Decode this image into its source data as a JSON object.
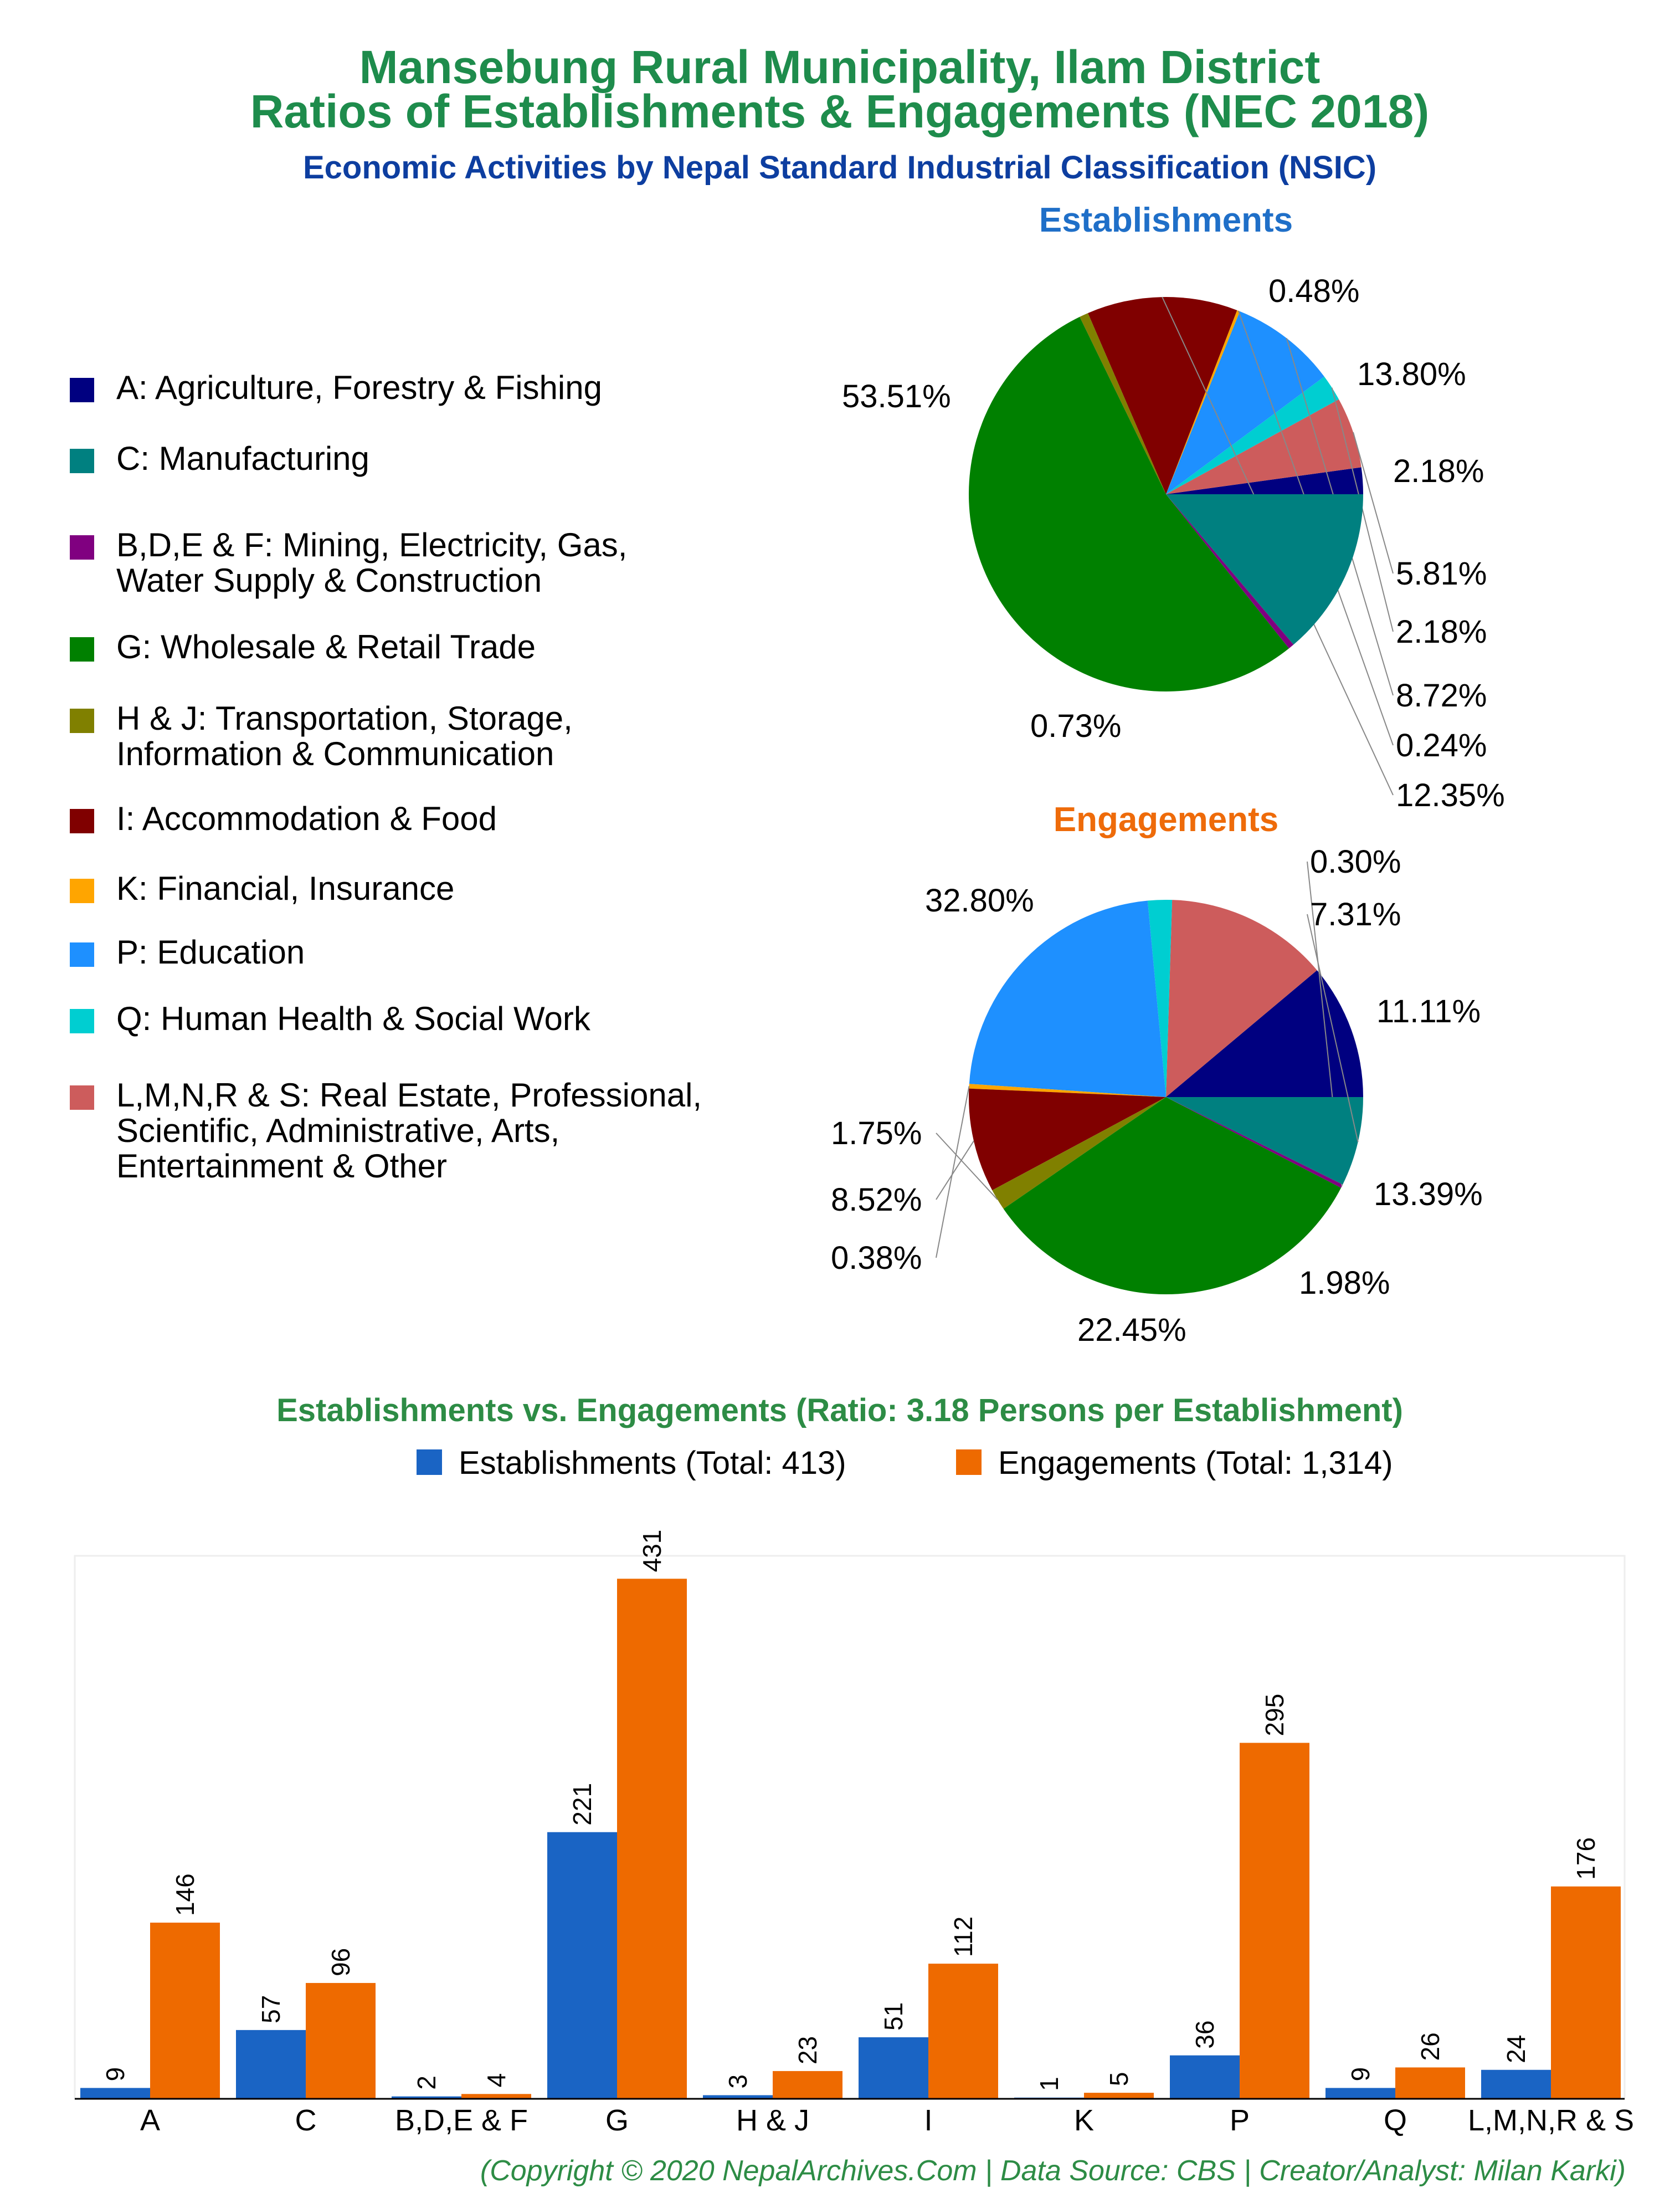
{
  "title_line1": "Mansebung Rural Municipality, Ilam District",
  "title_line2": "Ratios of Establishments & Engagements (NEC 2018)",
  "subtitle": "Economic Activities by Nepal Standard Industrial Classification (NSIC)",
  "copyright": "(Copyright © 2020 NepalArchives.Com | Data Source: CBS | Creator/Analyst: Milan Karki)",
  "colors": {
    "A": "#000080",
    "C": "#008080",
    "BDEF": "#800080",
    "G": "#008000",
    "HJ": "#808000",
    "I": "#800000",
    "K": "#ffa500",
    "P": "#1e90ff",
    "Q": "#00ced1",
    "LMNRS": "#cd5c5c",
    "est_bar": "#1a64c4",
    "eng_bar": "#ee6a00",
    "title": "#1e8c4c",
    "subtitle": "#0d3ea0"
  },
  "legend": [
    {
      "key": "A",
      "lines": [
        "A: Agriculture, Forestry & Fishing"
      ]
    },
    {
      "key": "C",
      "lines": [
        "C: Manufacturing"
      ]
    },
    {
      "key": "BDEF",
      "lines": [
        "B,D,E & F: Mining, Electricity, Gas,",
        "Water Supply & Construction"
      ]
    },
    {
      "key": "G",
      "lines": [
        "G: Wholesale & Retail Trade"
      ]
    },
    {
      "key": "HJ",
      "lines": [
        "H & J: Transportation, Storage,",
        "Information & Communication"
      ]
    },
    {
      "key": "I",
      "lines": [
        "I: Accommodation & Food"
      ]
    },
    {
      "key": "K",
      "lines": [
        "K: Financial, Insurance"
      ]
    },
    {
      "key": "P",
      "lines": [
        "P: Education"
      ]
    },
    {
      "key": "Q",
      "lines": [
        "Q: Human Health & Social Work"
      ]
    },
    {
      "key": "LMNRS",
      "lines": [
        "L,M,N,R & S: Real Estate, Professional,",
        "Scientific, Administrative, Arts,",
        "Entertainment & Other"
      ]
    }
  ],
  "chart_data": [
    {
      "type": "pie",
      "title": "Establishments",
      "slices": [
        {
          "key": "A",
          "value": 2.18,
          "label": "2.18%"
        },
        {
          "key": "LMNRS",
          "value": 5.81,
          "label": "5.81%"
        },
        {
          "key": "Q",
          "value": 2.18,
          "label": "2.18%"
        },
        {
          "key": "P",
          "value": 8.72,
          "label": "8.72%"
        },
        {
          "key": "K",
          "value": 0.24,
          "label": "0.24%"
        },
        {
          "key": "I",
          "value": 12.35,
          "label": "12.35%"
        },
        {
          "key": "HJ",
          "value": 0.73,
          "label": "0.73%"
        },
        {
          "key": "G",
          "value": 53.51,
          "label": "53.51%"
        },
        {
          "key": "BDEF",
          "value": 0.48,
          "label": "0.48%"
        },
        {
          "key": "C",
          "value": 13.8,
          "label": "13.80%"
        }
      ]
    },
    {
      "type": "pie",
      "title": "Engagements",
      "slices": [
        {
          "key": "A",
          "value": 11.11,
          "label": "11.11%"
        },
        {
          "key": "LMNRS",
          "value": 13.39,
          "label": "13.39%"
        },
        {
          "key": "Q",
          "value": 1.98,
          "label": "1.98%"
        },
        {
          "key": "P",
          "value": 22.45,
          "label": "22.45%"
        },
        {
          "key": "K",
          "value": 0.38,
          "label": "0.38%"
        },
        {
          "key": "I",
          "value": 8.52,
          "label": "8.52%"
        },
        {
          "key": "HJ",
          "value": 1.75,
          "label": "1.75%"
        },
        {
          "key": "G",
          "value": 32.8,
          "label": "32.80%"
        },
        {
          "key": "BDEF",
          "value": 0.3,
          "label": "0.30%"
        },
        {
          "key": "C",
          "value": 7.31,
          "label": "7.31%"
        }
      ]
    },
    {
      "type": "bar",
      "title": "Establishments vs. Engagements (Ratio: 3.18 Persons per Establishment)",
      "categories": [
        "A",
        "C",
        "B,D,E & F",
        "G",
        "H & J",
        "I",
        "K",
        "P",
        "Q",
        "L,M,N,R & S"
      ],
      "series": [
        {
          "name": "Establishments (Total: 413)",
          "values": [
            9,
            57,
            2,
            221,
            3,
            51,
            1,
            36,
            9,
            24
          ]
        },
        {
          "name": "Engagements (Total: 1,314)",
          "values": [
            146,
            96,
            4,
            431,
            23,
            112,
            5,
            295,
            26,
            176
          ]
        }
      ],
      "ylim": [
        0,
        450
      ],
      "legend_position": "top"
    }
  ]
}
